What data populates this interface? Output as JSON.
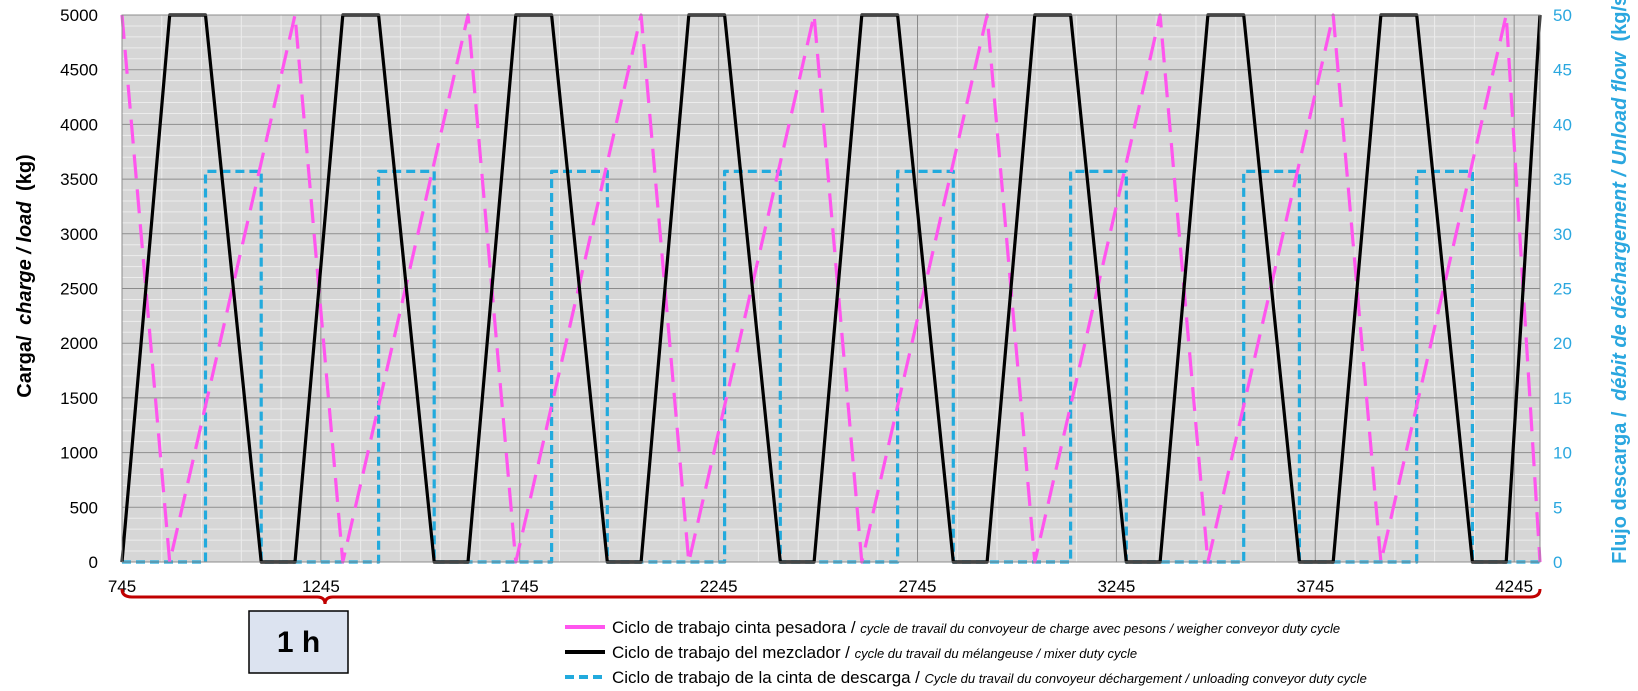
{
  "chart_data": {
    "type": "line",
    "x_range": [
      745,
      4310
    ],
    "x_ticks": [
      745,
      1245,
      1745,
      2245,
      2745,
      3245,
      3745,
      4245
    ],
    "y_left": {
      "title_main": "Carga/",
      "title_italic": "charge / load",
      "title_unit": "(kg)",
      "range": [
        0,
        5000
      ],
      "ticks": [
        0,
        500,
        1000,
        1500,
        2000,
        2500,
        3000,
        3500,
        4000,
        4500,
        5000
      ]
    },
    "y_right": {
      "title_main": "Flujo descarga /",
      "title_italic": "débit de déchargement / Unload flow",
      "title_unit": "(kg/s)",
      "range": [
        0,
        50
      ],
      "ticks": [
        0,
        5,
        10,
        15,
        20,
        25,
        30,
        35,
        40,
        45,
        50
      ]
    },
    "grid": true,
    "plot_background": "#d6d6d6",
    "series": [
      {
        "name": "Ciclo de trabajo cinta pesadora",
        "name_italic": "cycle de travail du convoyeur de charge avec pesons / weigher conveyor duty cycle",
        "color": "#ff55ee",
        "axis": "left",
        "style": "dashed",
        "points": [
          [
            745,
            5000
          ],
          [
            865,
            0
          ],
          [
            1180,
            5000
          ],
          [
            1180,
            5000
          ],
          [
            1300,
            0
          ],
          [
            1615,
            5000
          ],
          [
            1615,
            5000
          ],
          [
            1735,
            0
          ],
          [
            2050,
            5000
          ],
          [
            2050,
            5000
          ],
          [
            2170,
            0
          ],
          [
            2485,
            5000
          ],
          [
            2485,
            5000
          ],
          [
            2605,
            0
          ],
          [
            2920,
            5000
          ],
          [
            2920,
            5000
          ],
          [
            3040,
            0
          ],
          [
            3355,
            5000
          ],
          [
            3355,
            5000
          ],
          [
            3475,
            0
          ],
          [
            3790,
            5000
          ],
          [
            3790,
            5000
          ],
          [
            3910,
            0
          ],
          [
            4225,
            5000
          ],
          [
            4225,
            5000
          ],
          [
            4310,
            0
          ]
        ]
      },
      {
        "name": "Ciclo de trabajo del mezclador",
        "name_italic": "cycle du travail du mélangeuse / mixer duty cycle",
        "color": "#000000",
        "axis": "left",
        "style": "solid",
        "points": [
          [
            745,
            0
          ],
          [
            865,
            5000
          ],
          [
            955,
            5000
          ],
          [
            1095,
            0
          ],
          [
            1180,
            0
          ],
          [
            1300,
            5000
          ],
          [
            1390,
            5000
          ],
          [
            1530,
            0
          ],
          [
            1615,
            0
          ],
          [
            1735,
            5000
          ],
          [
            1825,
            5000
          ],
          [
            1965,
            0
          ],
          [
            2050,
            0
          ],
          [
            2170,
            5000
          ],
          [
            2260,
            5000
          ],
          [
            2400,
            0
          ],
          [
            2485,
            0
          ],
          [
            2605,
            5000
          ],
          [
            2695,
            5000
          ],
          [
            2835,
            0
          ],
          [
            2920,
            0
          ],
          [
            3040,
            5000
          ],
          [
            3130,
            5000
          ],
          [
            3270,
            0
          ],
          [
            3355,
            0
          ],
          [
            3475,
            5000
          ],
          [
            3565,
            5000
          ],
          [
            3705,
            0
          ],
          [
            3790,
            0
          ],
          [
            3910,
            5000
          ],
          [
            4000,
            5000
          ],
          [
            4140,
            0
          ],
          [
            4225,
            0
          ],
          [
            4310,
            5000
          ]
        ]
      },
      {
        "name": "Ciclo de trabajo de la cinta de descarga",
        "name_italic": "Cycle du travail du convoyeur déchargement / unloading conveyor duty cycle",
        "color": "#22aadd",
        "axis": "right",
        "style": "dashed",
        "points": [
          [
            745,
            0
          ],
          [
            955,
            0
          ],
          [
            955,
            35.7
          ],
          [
            1095,
            35.7
          ],
          [
            1095,
            0
          ],
          [
            1390,
            0
          ],
          [
            1390,
            35.7
          ],
          [
            1530,
            35.7
          ],
          [
            1530,
            0
          ],
          [
            1825,
            0
          ],
          [
            1825,
            35.7
          ],
          [
            1965,
            35.7
          ],
          [
            1965,
            0
          ],
          [
            2260,
            0
          ],
          [
            2260,
            35.7
          ],
          [
            2400,
            35.7
          ],
          [
            2400,
            0
          ],
          [
            2695,
            0
          ],
          [
            2695,
            35.7
          ],
          [
            2835,
            35.7
          ],
          [
            2835,
            0
          ],
          [
            3130,
            0
          ],
          [
            3130,
            35.7
          ],
          [
            3270,
            35.7
          ],
          [
            3270,
            0
          ],
          [
            3565,
            0
          ],
          [
            3565,
            35.7
          ],
          [
            3705,
            35.7
          ],
          [
            3705,
            0
          ],
          [
            4000,
            0
          ],
          [
            4000,
            35.7
          ],
          [
            4140,
            35.7
          ],
          [
            4140,
            0
          ],
          [
            4310,
            0
          ]
        ]
      }
    ],
    "annotation": {
      "label": "1 h",
      "color": "#c00000"
    }
  }
}
